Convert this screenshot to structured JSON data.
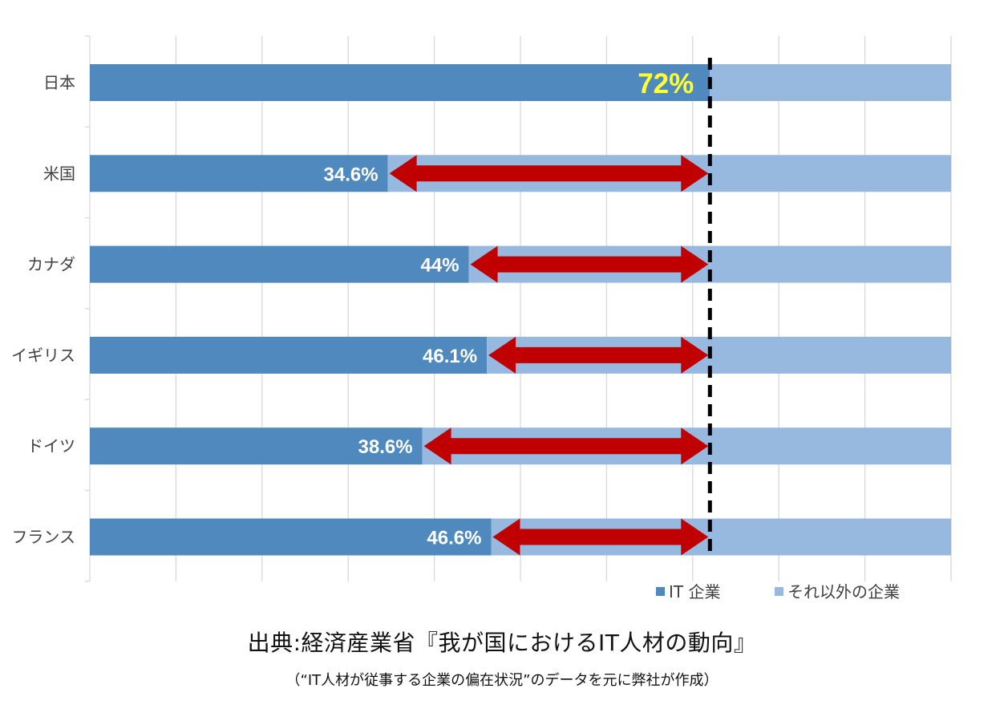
{
  "chart_data": {
    "type": "bar",
    "orientation": "horizontal",
    "stacked": "percent",
    "categories": [
      "日本",
      "米国",
      "カナダ",
      "イギリス",
      "ドイツ",
      "フランス"
    ],
    "series": [
      {
        "name": "IT 企業",
        "values": [
          72,
          34.6,
          44,
          46.1,
          38.6,
          46.6
        ],
        "color": "#4f89bd"
      },
      {
        "name": "それ以外の企業",
        "values": [
          28,
          65.4,
          56,
          53.9,
          61.4,
          53.4
        ],
        "color": "#98b9df"
      }
    ],
    "data_labels": [
      "72%",
      "34.6%",
      "44%",
      "46.1%",
      "38.6%",
      "46.6%"
    ],
    "highlight_label_color": "#ffff33",
    "reference_line": {
      "value": 72,
      "style": "dashed",
      "color": "#000000"
    },
    "gap_arrows": {
      "color": "#c00000",
      "to": 72
    },
    "xlim": [
      0,
      100
    ],
    "grid": true,
    "legend": "bottom-right"
  },
  "source": {
    "title": "出典:経済産業省『我が国におけるIT人材の動向』",
    "note": "（“IT人材が従事する企業の偏在状況”のデータを元に弊社が作成）"
  }
}
